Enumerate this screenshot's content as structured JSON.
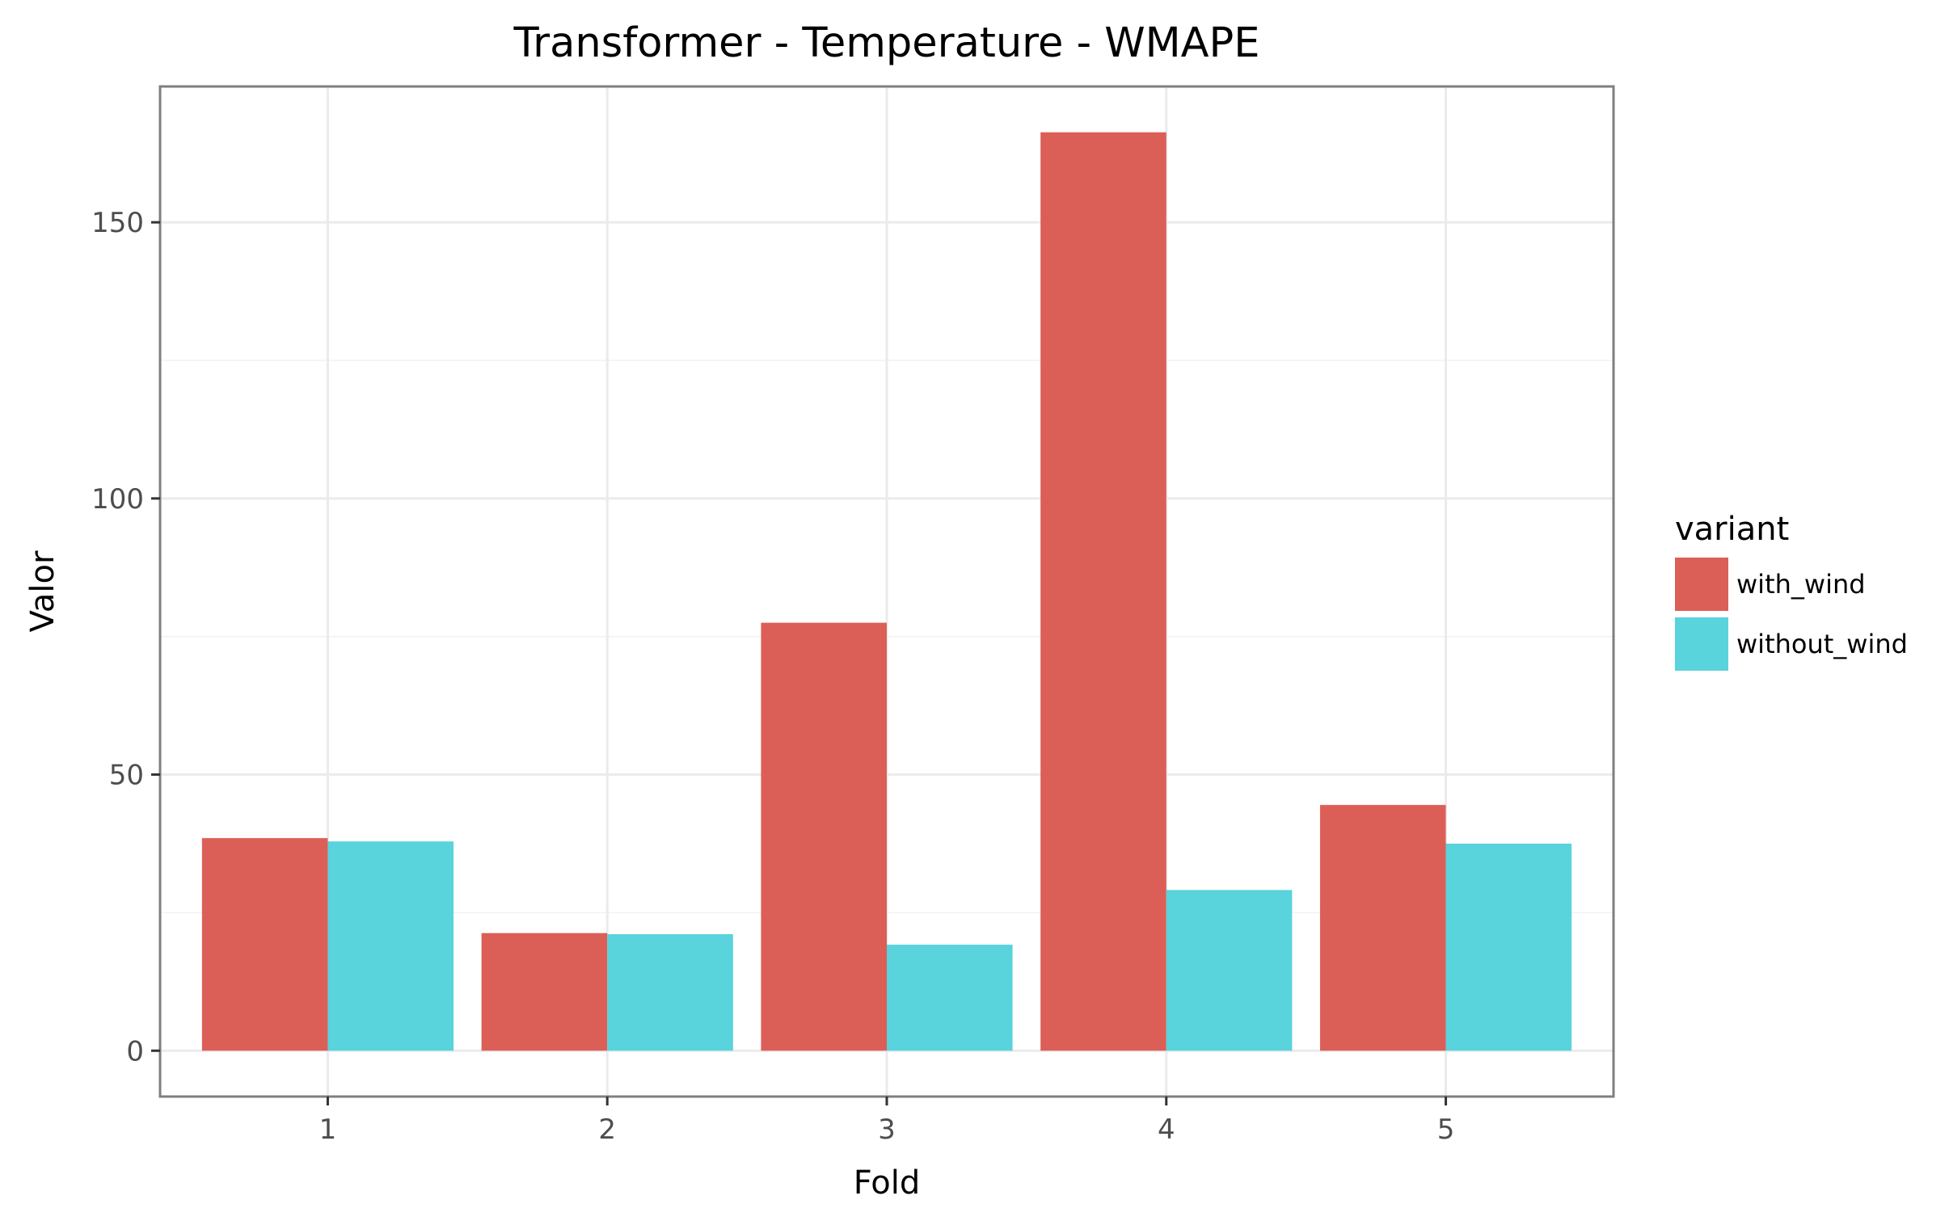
{
  "chart_data": {
    "type": "bar",
    "title": "Transformer - Temperature - WMAPE",
    "xlabel": "Fold",
    "ylabel": "Valor",
    "categories": [
      "1",
      "2",
      "3",
      "4",
      "5"
    ],
    "series": [
      {
        "name": "with_wind",
        "color": "#dc5f57",
        "values": [
          38.5,
          21.3,
          77.5,
          166.3,
          44.5
        ]
      },
      {
        "name": "without_wind",
        "color": "#59d3dc",
        "values": [
          37.9,
          21.1,
          19.2,
          29.1,
          37.5
        ]
      }
    ],
    "yticks": [
      0,
      50,
      100,
      150
    ],
    "ylim": [
      -8.3,
      174.6
    ],
    "grid": true,
    "legend_title": "variant",
    "legend_position": "right"
  }
}
